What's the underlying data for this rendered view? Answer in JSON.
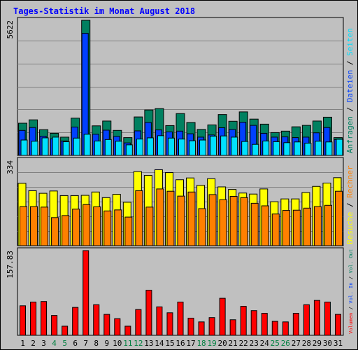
{
  "chart_data": {
    "title": "Tages-Statistik im Monat August 2018",
    "days": [
      "1",
      "2",
      "3",
      "4",
      "5",
      "6",
      "7",
      "8",
      "9",
      "10",
      "11",
      "12",
      "13",
      "14",
      "15",
      "16",
      "17",
      "18",
      "19",
      "20",
      "21",
      "22",
      "23",
      "24",
      "25",
      "26",
      "27",
      "28",
      "29",
      "30",
      "31"
    ],
    "weekend_days": [
      "4",
      "5",
      "11",
      "12",
      "18",
      "19",
      "25",
      "26"
    ],
    "colors": {
      "title": "#0000ff",
      "day_label": "#000000",
      "weekend_day_label": "#008040",
      "anfragen": "#008060",
      "dateien": "#0040ff",
      "seiten": "#00e0ff",
      "besuche": "#ffff00",
      "rechner": "#ff8000",
      "volumen": "#ff0000",
      "background": "#c0c0c0",
      "gridline": "#808080"
    },
    "panels": [
      {
        "type": "bar",
        "max_label": "5622",
        "ylim": [
          0,
          5622
        ],
        "grid": true,
        "legend": [
          {
            "text": "Anfragen",
            "color": "#008060"
          },
          {
            "text": "Dateien",
            "color": "#0040ff"
          },
          {
            "text": "Seiten",
            "color": "#00e0ff"
          }
        ],
        "series": [
          {
            "name": "Anfragen",
            "values": [
              1340,
              1480,
              1070,
              920,
              760,
              1550,
              5622,
              1230,
              1430,
              1040,
              740,
              1600,
              1890,
              1950,
              1240,
              1740,
              1370,
              1080,
              1270,
              1700,
              1420,
              1810,
              1510,
              1300,
              950,
              1010,
              1190,
              1250,
              1430,
              1590,
              740
            ]
          },
          {
            "name": "Dateien",
            "values": [
              1040,
              1160,
              800,
              690,
              600,
              1180,
              5080,
              880,
              1050,
              790,
              520,
              1020,
              1370,
              1060,
              980,
              1010,
              900,
              760,
              850,
              1150,
              1080,
              1380,
              1250,
              920,
              760,
              770,
              740,
              760,
              940,
              1160,
              660
            ]
          },
          {
            "name": "Seiten",
            "values": [
              640,
              590,
              730,
              760,
              570,
              720,
              880,
              600,
              660,
              590,
              440,
              680,
              730,
              820,
              720,
              680,
              610,
              640,
              800,
              810,
              760,
              580,
              460,
              600,
              570,
              530,
              560,
              510,
              590,
              560,
              670
            ]
          }
        ]
      },
      {
        "type": "bar",
        "max_label": "334",
        "ylim": [
          0,
          334
        ],
        "grid": true,
        "legend": [
          {
            "text": "Besuche",
            "color": "#ffff00"
          },
          {
            "text": "Rechner",
            "color": "#ff8000"
          }
        ],
        "series": [
          {
            "name": "Besuche",
            "values": [
              244,
              215,
              205,
              214,
              196,
              196,
              197,
              210,
              188,
              201,
              170,
              290,
              275,
              297,
              286,
              258,
              265,
              236,
              262,
              230,
              220,
              206,
              202,
              222,
              172,
              183,
              183,
              208,
              232,
              245,
              266
            ]
          },
          {
            "name": "Rechner",
            "values": [
              153,
              153,
              151,
              110,
              118,
              143,
              161,
              152,
              136,
              140,
              112,
              215,
              151,
              222,
              213,
              194,
              210,
              145,
              200,
              180,
              193,
              188,
              166,
              156,
              124,
              138,
              139,
              147,
              153,
              158,
              213
            ]
          }
        ]
      },
      {
        "type": "bar",
        "max_label": "157.83",
        "ylim": [
          0,
          157.83
        ],
        "grid": false,
        "legend": [
          {
            "text": "Volumen",
            "color": "#ff0000"
          },
          {
            "text": "Vol. In",
            "color": "#0040ff"
          },
          {
            "text": "Vol. Out",
            "color": "#008060"
          }
        ],
        "series": [
          {
            "name": "Volumen",
            "values": [
              55,
              62,
              63,
              37,
              17,
              52,
              157.83,
              57,
              39,
              31,
              17,
              48,
              84,
              53,
              42,
              62,
              32,
              25,
              33,
              69,
              29,
              54,
              46,
              41,
              26,
              25,
              41,
              57,
              65,
              62,
              39
            ]
          }
        ]
      }
    ]
  }
}
